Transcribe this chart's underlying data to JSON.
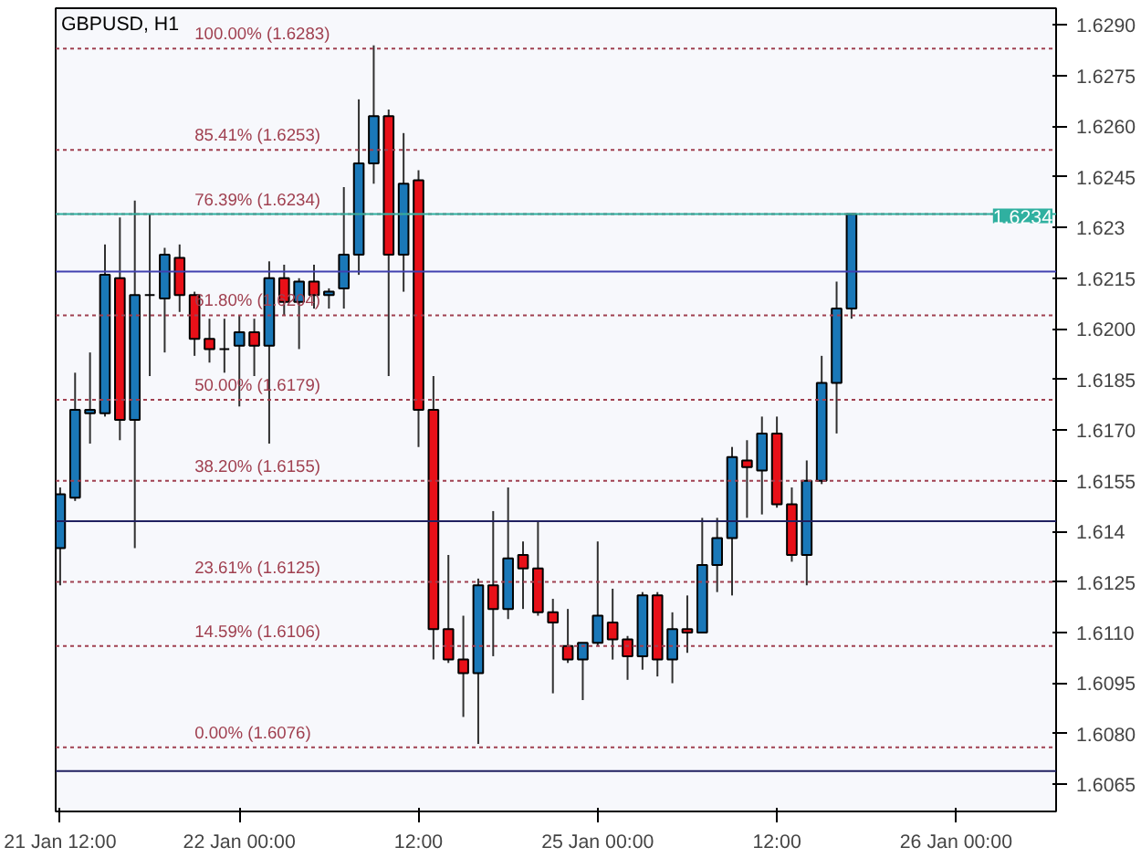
{
  "chart_data": {
    "type": "candlestick",
    "title": "GBPUSD, H1",
    "categories": [
      "21 Jan 12:00",
      null,
      null,
      null,
      null,
      null,
      null,
      null,
      null,
      null,
      null,
      null,
      "22 Jan 00:00",
      null,
      null,
      null,
      null,
      null,
      null,
      null,
      null,
      null,
      null,
      null,
      "12:00",
      null,
      null,
      null,
      null,
      null,
      null,
      null,
      null,
      null,
      null,
      null,
      "25 Jan 00:00",
      null,
      null,
      null,
      null,
      null,
      null,
      null,
      null,
      null,
      null,
      null,
      "12:00",
      null,
      null,
      null,
      null,
      null,
      null,
      null,
      null,
      null,
      null,
      null,
      "26 Jan 00:00",
      null,
      null,
      null,
      null,
      null,
      null
    ],
    "ohlc": [
      [
        1.6135,
        1.6153,
        1.6124,
        1.6151
      ],
      [
        1.615,
        1.6187,
        1.6149,
        1.6176
      ],
      [
        1.6175,
        1.6193,
        1.6166,
        1.6176
      ],
      [
        1.6175,
        1.6225,
        1.6174,
        1.6216
      ],
      [
        1.6215,
        1.6233,
        1.6167,
        1.6173
      ],
      [
        1.6173,
        1.6238,
        1.6135,
        1.621
      ],
      [
        1.621,
        1.6234,
        1.6186,
        1.621
      ],
      [
        1.6209,
        1.6224,
        1.6193,
        1.6222
      ],
      [
        1.6221,
        1.6225,
        1.6205,
        1.621
      ],
      [
        1.621,
        1.6211,
        1.6192,
        1.6197
      ],
      [
        1.6197,
        1.6203,
        1.619,
        1.6194
      ],
      [
        1.6194,
        1.6203,
        1.6187,
        1.6194
      ],
      [
        1.6195,
        1.6204,
        1.6177,
        1.6199
      ],
      [
        1.6199,
        1.6203,
        1.6186,
        1.6195
      ],
      [
        1.6195,
        1.622,
        1.6166,
        1.6215
      ],
      [
        1.6215,
        1.6219,
        1.6204,
        1.6208
      ],
      [
        1.6208,
        1.6215,
        1.6194,
        1.6214
      ],
      [
        1.6214,
        1.6219,
        1.6206,
        1.621
      ],
      [
        1.621,
        1.6212,
        1.6206,
        1.6211
      ],
      [
        1.6212,
        1.6242,
        1.6206,
        1.6222
      ],
      [
        1.6222,
        1.6268,
        1.6216,
        1.6249
      ],
      [
        1.6249,
        1.6284,
        1.6243,
        1.6263
      ],
      [
        1.6263,
        1.6265,
        1.6186,
        1.6222
      ],
      [
        1.6222,
        1.6258,
        1.6211,
        1.6243
      ],
      [
        1.6244,
        1.6247,
        1.6165,
        1.6176
      ],
      [
        1.6176,
        1.6186,
        1.6102,
        1.6111
      ],
      [
        1.6111,
        1.6133,
        1.6101,
        1.6102
      ],
      [
        1.6102,
        1.6115,
        1.6085,
        1.6098
      ],
      [
        1.6098,
        1.6126,
        1.6077,
        1.6124
      ],
      [
        1.6124,
        1.6146,
        1.6103,
        1.6117
      ],
      [
        1.6117,
        1.6153,
        1.6114,
        1.6132
      ],
      [
        1.6133,
        1.6137,
        1.6117,
        1.6129
      ],
      [
        1.6129,
        1.6143,
        1.6115,
        1.6116
      ],
      [
        1.6116,
        1.612,
        1.6092,
        1.6113
      ],
      [
        1.6106,
        1.6117,
        1.6101,
        1.6102
      ],
      [
        1.6102,
        1.6107,
        1.609,
        1.6107
      ],
      [
        1.6107,
        1.6137,
        1.6106,
        1.6115
      ],
      [
        1.6113,
        1.6123,
        1.6102,
        1.6108
      ],
      [
        1.6108,
        1.6109,
        1.6096,
        1.6103
      ],
      [
        1.6103,
        1.6122,
        1.6099,
        1.6121
      ],
      [
        1.6121,
        1.6122,
        1.6097,
        1.6102
      ],
      [
        1.6102,
        1.6116,
        1.6095,
        1.6111
      ],
      [
        1.6111,
        1.6121,
        1.6104,
        1.611
      ],
      [
        1.611,
        1.6144,
        1.611,
        1.613
      ],
      [
        1.613,
        1.6144,
        1.6122,
        1.6138
      ],
      [
        1.6138,
        1.6165,
        1.6121,
        1.6162
      ],
      [
        1.6161,
        1.6167,
        1.6144,
        1.6159
      ],
      [
        1.6158,
        1.6174,
        1.6145,
        1.6169
      ],
      [
        1.6169,
        1.6174,
        1.6147,
        1.6148
      ],
      [
        1.6148,
        1.6153,
        1.6131,
        1.6133
      ],
      [
        1.6133,
        1.6161,
        1.6124,
        1.6155
      ],
      [
        1.6155,
        1.6192,
        1.6154,
        1.6184
      ],
      [
        1.6184,
        1.6214,
        1.6169,
        1.6206
      ],
      [
        1.6206,
        1.6234,
        1.6203,
        1.6234
      ],
      null,
      null,
      null,
      null,
      null,
      null,
      null,
      null,
      null,
      null,
      null,
      null,
      null
    ],
    "colors": [
      "#1a78b8",
      "#1a78b8",
      "#1a78b8",
      "#1a78b8",
      "#e81018",
      "#1a78b8",
      "#000000",
      "#1a78b8",
      "#e81018",
      "#e81018",
      "#e81018",
      "#000000",
      "#1a78b8",
      "#e81018",
      "#1a78b8",
      "#e81018",
      "#1a78b8",
      "#e81018",
      "#1a78b8",
      "#1a78b8",
      "#1a78b8",
      "#1a78b8",
      "#e81018",
      "#1a78b8",
      "#e81018",
      "#e81018",
      "#e81018",
      "#e81018",
      "#1a78b8",
      "#e81018",
      "#1a78b8",
      "#e81018",
      "#e81018",
      "#e81018",
      "#e81018",
      "#1a78b8",
      "#1a78b8",
      "#e81018",
      "#e81018",
      "#1a78b8",
      "#e81018",
      "#1a78b8",
      "#e81018",
      "#1a78b8",
      "#1a78b8",
      "#1a78b8",
      "#e81018",
      "#1a78b8",
      "#e81018",
      "#e81018",
      "#1a78b8",
      "#1a78b8",
      "#1a78b8",
      "#1a78b8",
      null,
      null,
      null,
      null,
      null,
      null,
      null,
      null,
      null,
      null,
      null,
      null,
      null
    ],
    "ylim": [
      1.6057,
      1.6295
    ],
    "yticks": [
      {
        "value": 1.629,
        "label": "1.6290"
      },
      1.6275,
      {
        "value": 1.626,
        "label": "1.6260"
      },
      1.6245,
      1.623,
      1.6215,
      {
        "value": 1.62,
        "label": "1.6200"
      },
      1.6185,
      {
        "value": 1.617,
        "label": "1.6170"
      },
      1.6155,
      1.614,
      1.6125,
      {
        "value": 1.611,
        "label": "1.6110"
      },
      1.6095,
      {
        "value": 1.608,
        "label": "1.6080"
      },
      1.6065
    ],
    "grid": false,
    "ref_lines": [
      {
        "axis": "y",
        "value": 1.6283,
        "label": "100.00% (1.6283)",
        "color": "#a04050",
        "line_style": "dotted"
      },
      {
        "axis": "y",
        "value": 1.6253,
        "label": "85.41% (1.6253)",
        "color": "#a04050",
        "line_style": "dotted"
      },
      {
        "axis": "y",
        "value": 1.6234,
        "label": "76.39% (1.6234)",
        "color": "#a04050",
        "line_style": "dotted"
      },
      {
        "axis": "y",
        "value": 1.6204,
        "label": "61.80% (1.6204)",
        "color": "#a04050",
        "line_style": "dotted"
      },
      {
        "axis": "y",
        "value": 1.6179,
        "label": "50.00% (1.6179)",
        "color": "#a04050",
        "line_style": "dotted"
      },
      {
        "axis": "y",
        "value": 1.6155,
        "label": "38.20% (1.6155)",
        "color": "#a04050",
        "line_style": "dotted"
      },
      {
        "axis": "y",
        "value": 1.6125,
        "label": "23.61% (1.6125)",
        "color": "#a04050",
        "line_style": "dotted"
      },
      {
        "axis": "y",
        "value": 1.6106,
        "label": "14.59% (1.6106)",
        "color": "#a04050",
        "line_style": "dotted"
      },
      {
        "axis": "y",
        "value": 1.6076,
        "label": "0.00% (1.6076)",
        "color": "#a04050",
        "line_style": "dotted"
      },
      {
        "axis": "y",
        "value": 1.6234,
        "label": "1.6234",
        "color": "#30b0a0",
        "line_style": "solid"
      },
      {
        "axis": "y",
        "value": 1.6217,
        "color": "#4040b0",
        "line_style": "solid"
      },
      {
        "axis": "y",
        "value": 1.6143,
        "color": "#202060",
        "line_style": "solid"
      },
      {
        "axis": "y",
        "value": 1.6069,
        "color": "#202060",
        "line_style": "solid"
      }
    ]
  }
}
